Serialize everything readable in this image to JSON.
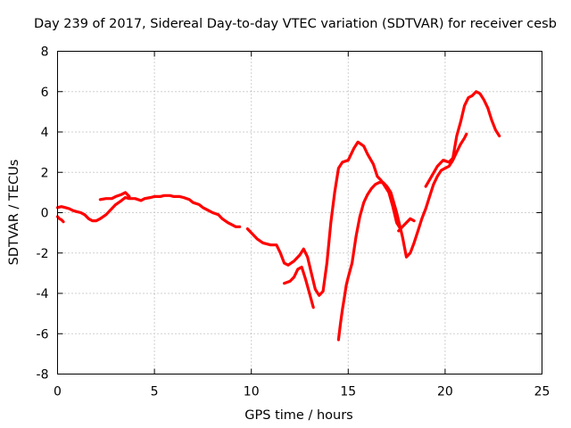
{
  "chart_data": {
    "type": "scatter",
    "title": "Day 239 of 2017, Sidereal Day-to-day VTEC variation (SDTVAR) for receiver cesb",
    "xlabel": "GPS time / hours",
    "ylabel": "SDTVAR / TECUs",
    "xlim": [
      0,
      25
    ],
    "ylim": [
      -8,
      8
    ],
    "xticks": [
      0,
      5,
      10,
      15,
      20,
      25
    ],
    "yticks": [
      -8,
      -6,
      -4,
      -2,
      0,
      2,
      4,
      6,
      8
    ],
    "grid": true,
    "marker": "plus",
    "color": "#ff0000",
    "segments": [
      {
        "x": [
          0.0,
          0.1,
          0.2,
          0.3
        ],
        "y": [
          -0.2,
          -0.3,
          -0.35,
          -0.45
        ]
      },
      {
        "x": [
          0.0,
          0.2,
          0.4,
          0.6,
          0.8,
          1.0,
          1.2,
          1.4,
          1.6,
          1.8,
          2.0,
          2.2,
          2.5,
          2.8,
          3.0,
          3.3,
          3.5,
          3.7,
          4.0,
          4.3,
          4.5,
          4.8,
          5.0,
          5.3,
          5.5,
          5.8,
          6.0,
          6.3,
          6.5,
          6.8,
          7.0,
          7.3,
          7.5,
          7.8,
          8.0,
          8.3,
          8.5,
          8.8,
          9.0,
          9.2,
          9.4
        ],
        "y": [
          0.25,
          0.3,
          0.25,
          0.2,
          0.1,
          0.05,
          0.0,
          -0.1,
          -0.3,
          -0.4,
          -0.4,
          -0.3,
          -0.1,
          0.2,
          0.4,
          0.6,
          0.75,
          0.7,
          0.7,
          0.6,
          0.7,
          0.75,
          0.8,
          0.8,
          0.85,
          0.85,
          0.8,
          0.8,
          0.75,
          0.65,
          0.5,
          0.4,
          0.25,
          0.1,
          0.0,
          -0.1,
          -0.3,
          -0.5,
          -0.6,
          -0.7,
          -0.7
        ]
      },
      {
        "x": [
          2.2,
          2.5,
          2.8,
          3.0,
          3.3,
          3.5,
          3.7
        ],
        "y": [
          0.65,
          0.7,
          0.7,
          0.8,
          0.9,
          1.0,
          0.8
        ]
      },
      {
        "x": [
          9.8,
          10.0,
          10.3,
          10.6,
          11.0,
          11.3,
          11.5,
          11.7,
          11.9,
          12.2,
          12.5,
          12.7,
          12.9,
          13.1,
          13.3,
          13.5,
          13.7,
          13.9,
          14.1,
          14.3,
          14.5,
          14.7,
          15.0,
          15.3,
          15.5,
          15.8,
          16.0,
          16.3,
          16.5,
          16.7,
          16.9,
          17.1,
          17.3,
          17.5,
          17.7
        ],
        "y": [
          -0.8,
          -1.0,
          -1.3,
          -1.5,
          -1.6,
          -1.6,
          -2.0,
          -2.5,
          -2.6,
          -2.4,
          -2.1,
          -1.8,
          -2.2,
          -3.0,
          -3.8,
          -4.1,
          -3.9,
          -2.5,
          -0.5,
          1.0,
          2.2,
          2.5,
          2.6,
          3.2,
          3.5,
          3.3,
          2.9,
          2.4,
          1.8,
          1.6,
          1.3,
          1.0,
          0.3,
          -0.5,
          -0.8
        ]
      },
      {
        "x": [
          11.7,
          12.0,
          12.2,
          12.4,
          12.6,
          12.8,
          13.0,
          13.2
        ],
        "y": [
          -3.5,
          -3.4,
          -3.2,
          -2.8,
          -2.7,
          -3.3,
          -4.0,
          -4.7
        ]
      },
      {
        "x": [
          14.5,
          14.6,
          14.7,
          14.8,
          14.9,
          15.0,
          15.2,
          15.4,
          15.6,
          15.8,
          16.0,
          16.2,
          16.4,
          16.6,
          16.8,
          17.0,
          17.2,
          17.5,
          17.8,
          18.0,
          18.2,
          18.4,
          18.6,
          18.8,
          19.0,
          19.2,
          19.4,
          19.6,
          19.8,
          20.0,
          20.2,
          20.4,
          20.6,
          20.8,
          21.0,
          21.1
        ],
        "y": [
          -6.3,
          -5.5,
          -4.8,
          -4.2,
          -3.6,
          -3.2,
          -2.5,
          -1.2,
          -0.2,
          0.5,
          0.9,
          1.2,
          1.4,
          1.5,
          1.5,
          1.3,
          1.0,
          0.0,
          -1.2,
          -2.2,
          -2.0,
          -1.5,
          -0.9,
          -0.3,
          0.2,
          0.8,
          1.4,
          1.8,
          2.1,
          2.2,
          2.3,
          2.6,
          3.0,
          3.4,
          3.7,
          3.9
        ]
      },
      {
        "x": [
          17.6,
          17.8,
          18.0,
          18.2,
          18.4
        ],
        "y": [
          -0.9,
          -0.7,
          -0.5,
          -0.3,
          -0.4
        ]
      },
      {
        "x": [
          19.0,
          19.3,
          19.6,
          19.9,
          20.2,
          20.4,
          20.6,
          20.8,
          21.0,
          21.2,
          21.4,
          21.6,
          21.8,
          22.0,
          22.2,
          22.4,
          22.6,
          22.8
        ],
        "y": [
          1.3,
          1.8,
          2.3,
          2.6,
          2.5,
          2.7,
          3.8,
          4.5,
          5.3,
          5.7,
          5.8,
          6.0,
          5.9,
          5.6,
          5.2,
          4.6,
          4.1,
          3.8
        ]
      }
    ]
  }
}
